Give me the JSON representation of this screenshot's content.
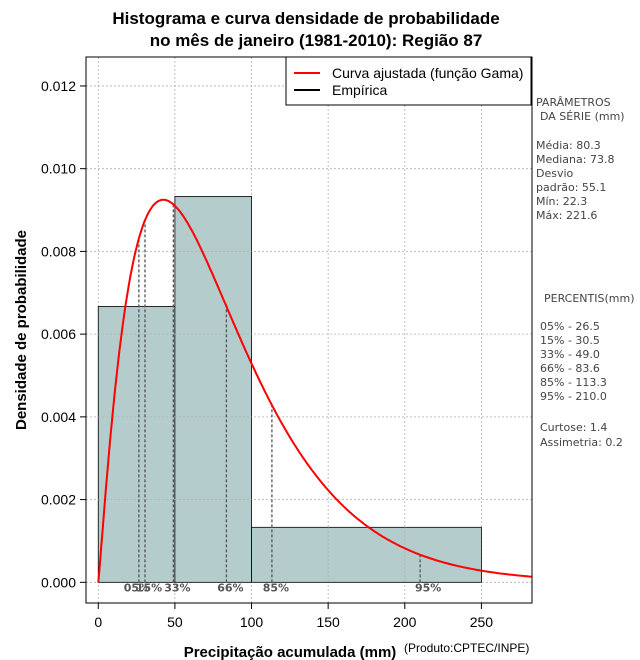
{
  "chart_data": {
    "type": "bar",
    "title": [
      "Histograma e curva densidade de probabilidade",
      "no mês de janeiro (1981-2010): Região 87"
    ],
    "xlabel": "Precipitação acumulada (mm)",
    "ylabel": "Densidade de probabilidade",
    "credit": "(Produto:CPTEC/INPE)",
    "xlim": [
      -8,
      283
    ],
    "ylim": [
      -0.0005,
      0.0127
    ],
    "xticks": [
      0,
      50,
      100,
      150,
      200,
      250
    ],
    "yticks": [
      "0.000",
      "0.002",
      "0.004",
      "0.006",
      "0.008",
      "0.010",
      "0.012"
    ],
    "grid": true,
    "bins": [
      {
        "from": 0,
        "to": 50,
        "density": 0.00667
      },
      {
        "from": 50,
        "to": 100,
        "density": 0.00933
      },
      {
        "from": 100,
        "to": 250,
        "density": 0.00133
      }
    ],
    "gamma_fit": {
      "shape": 2.12,
      "scale": 37.9
    },
    "legend": {
      "position": "top-right",
      "entries": [
        {
          "label": "Curva ajustada (função Gama)",
          "color": "#ff0000"
        },
        {
          "label": "Empírica",
          "color": "#000000"
        }
      ]
    },
    "percentiles": [
      {
        "label": "05%",
        "value": 26.5
      },
      {
        "label": "15%",
        "value": 30.5
      },
      {
        "label": "33%",
        "value": 49.0
      },
      {
        "label": "66%",
        "value": 83.6
      },
      {
        "label": "85%",
        "value": 113.3
      },
      {
        "label": "95%",
        "value": 210.0
      }
    ],
    "series_params": {
      "heading": [
        "PARÂMETROS",
        "DA SÉRIE (mm)"
      ],
      "lines": [
        "Média:  80.3",
        "Mediana:  73.8",
        "Desvio",
        "padrão:  55.1",
        "Mín:  22.3",
        "Máx:  221.6"
      ]
    },
    "percentile_panel": {
      "heading": "PERCENTIS(mm)",
      "lines": [
        "05% -   26.5",
        "15% -   30.5",
        "33% -   49.0",
        "66% -   83.6",
        "85% -   113.3",
        "95% -   210.0"
      ]
    },
    "shape_stats": [
      "Curtose:  1.4",
      "Assimetria:  0.2"
    ],
    "colors": {
      "bar_fill": "#b5cccc",
      "curve": "#ff0000",
      "grid": "#b0b0b0",
      "percentile_line": "#555555"
    }
  }
}
